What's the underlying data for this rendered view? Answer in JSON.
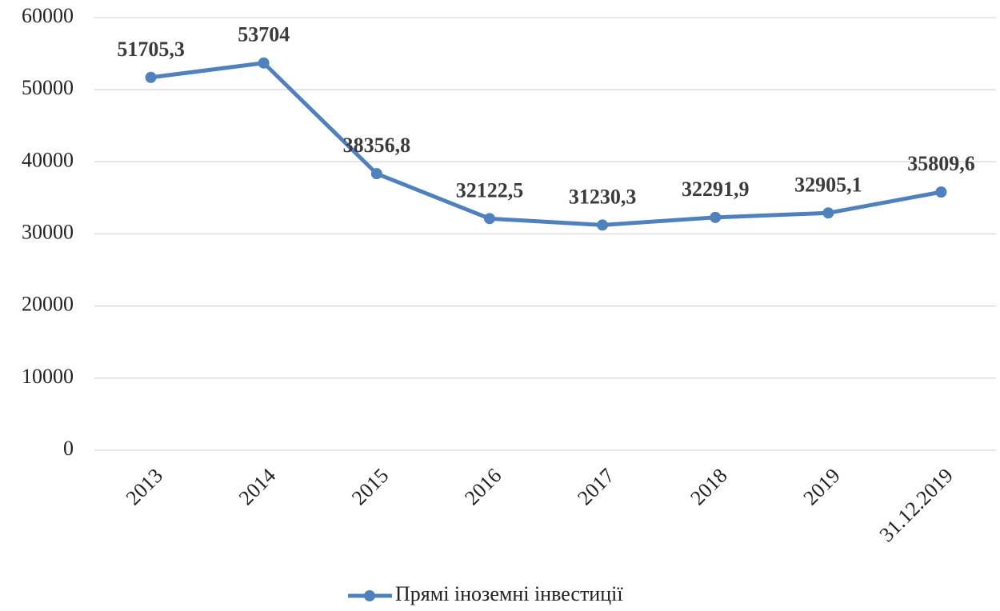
{
  "chart_data": {
    "type": "line",
    "categories": [
      "2013",
      "2014",
      "2015",
      "2016",
      "2017",
      "2018",
      "2019",
      "31.12.2019"
    ],
    "series": [
      {
        "name": "Прямі іноземні інвестиції",
        "color": "#4f81bd",
        "values": [
          51705.3,
          53704,
          38356.8,
          32122.5,
          31230.3,
          32291.9,
          32905.1,
          35809.6
        ],
        "value_labels": [
          "51705,3",
          "53704",
          "38356,8",
          "32122,5",
          "31230,3",
          "32291,9",
          "32905,1",
          "35809,6"
        ]
      }
    ],
    "ylim": [
      0,
      60000
    ],
    "yticks": [
      0,
      10000,
      20000,
      30000,
      40000,
      50000,
      60000
    ],
    "grid": true,
    "legend": "bottom"
  }
}
